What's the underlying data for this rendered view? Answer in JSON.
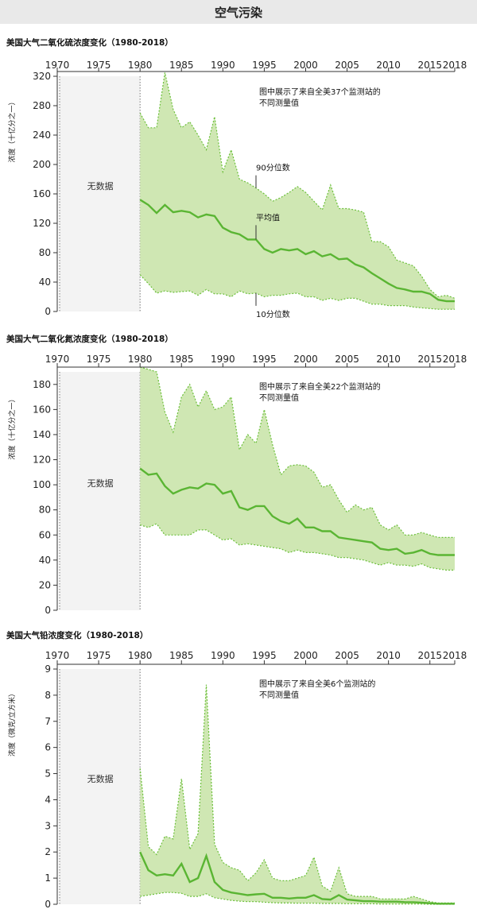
{
  "header": {
    "title": "空气污染"
  },
  "colors": {
    "band": "#cfe7b3",
    "band_edge": "#6bbf3a",
    "mean": "#5ab533",
    "nodata_bg": "#f3f3f3",
    "header_bg": "#e9e9e9"
  },
  "chart_data": [
    {
      "type": "area",
      "title": "美国大气二氧化硫浓度变化（1980-2018）",
      "ylabel": "浓度（十亿分之一）",
      "note": [
        "图中展示了来自全美37个监测站的",
        "不同测量值"
      ],
      "no_data_label": "无数据",
      "xlim": [
        1970,
        2018
      ],
      "xticks": [
        "1970",
        "1975",
        "1980",
        "1985",
        "1990",
        "1995",
        "2000",
        "2005",
        "2010",
        "2015",
        "2018"
      ],
      "ylim": [
        0,
        320
      ],
      "yticks": [
        0,
        40,
        80,
        120,
        160,
        200,
        240,
        280,
        320
      ],
      "annotations": [
        "90分位数",
        "平均值",
        "10分位数"
      ],
      "x": [
        1980,
        1981,
        1982,
        1983,
        1984,
        1985,
        1986,
        1987,
        1988,
        1989,
        1990,
        1991,
        1992,
        1993,
        1994,
        1995,
        1996,
        1997,
        1998,
        1999,
        2000,
        2001,
        2002,
        2003,
        2004,
        2005,
        2006,
        2007,
        2008,
        2009,
        2010,
        2011,
        2012,
        2013,
        2014,
        2015,
        2016,
        2017,
        2018
      ],
      "series": [
        {
          "name": "90分位数",
          "values": [
            270,
            250,
            250,
            325,
            275,
            250,
            258,
            240,
            220,
            265,
            190,
            220,
            180,
            175,
            168,
            160,
            150,
            155,
            162,
            170,
            162,
            150,
            138,
            172,
            140,
            140,
            138,
            135,
            95,
            95,
            88,
            70,
            66,
            62,
            48,
            30,
            20,
            22,
            18
          ]
        },
        {
          "name": "平均值",
          "values": [
            152,
            145,
            134,
            145,
            135,
            137,
            135,
            128,
            132,
            130,
            114,
            108,
            105,
            98,
            98,
            85,
            80,
            85,
            83,
            85,
            78,
            82,
            75,
            78,
            71,
            72,
            64,
            60,
            52,
            45,
            38,
            32,
            30,
            27,
            27,
            24,
            16,
            14,
            14
          ]
        },
        {
          "name": "10分位数",
          "values": [
            50,
            38,
            25,
            28,
            26,
            27,
            28,
            22,
            30,
            24,
            24,
            20,
            28,
            24,
            25,
            20,
            22,
            22,
            24,
            25,
            20,
            20,
            15,
            18,
            15,
            18,
            18,
            14,
            10,
            10,
            8,
            8,
            8,
            6,
            5,
            4,
            3,
            3,
            3
          ]
        }
      ]
    },
    {
      "type": "area",
      "title": "美国大气二氧化氮浓度变化（1980-2018）",
      "ylabel": "浓度（十亿分之一）",
      "note": [
        "图中展示了来自全美22个监测站的",
        "不同测量值"
      ],
      "no_data_label": "无数据",
      "xlim": [
        1970,
        2018
      ],
      "xticks": [
        "1970",
        "1975",
        "1980",
        "1985",
        "1990",
        "1995",
        "2000",
        "2005",
        "2010",
        "2015",
        "2018"
      ],
      "ylim": [
        0,
        190
      ],
      "yticks": [
        0,
        20,
        40,
        60,
        80,
        100,
        120,
        140,
        160,
        180
      ],
      "x": [
        1980,
        1981,
        1982,
        1983,
        1984,
        1985,
        1986,
        1987,
        1988,
        1989,
        1990,
        1991,
        1992,
        1993,
        1994,
        1995,
        1996,
        1997,
        1998,
        1999,
        2000,
        2001,
        2002,
        2003,
        2004,
        2005,
        2006,
        2007,
        2008,
        2009,
        2010,
        2011,
        2012,
        2013,
        2014,
        2015,
        2016,
        2017,
        2018
      ],
      "series": [
        {
          "name": "90分位数",
          "values": [
            195,
            192,
            190,
            158,
            142,
            170,
            180,
            162,
            175,
            160,
            162,
            170,
            128,
            140,
            133,
            160,
            132,
            108,
            115,
            116,
            115,
            110,
            98,
            100,
            88,
            78,
            84,
            80,
            82,
            68,
            64,
            68,
            60,
            60,
            62,
            60,
            58,
            58,
            58
          ]
        },
        {
          "name": "平均值",
          "values": [
            113,
            108,
            109,
            99,
            93,
            96,
            98,
            97,
            101,
            100,
            93,
            95,
            82,
            80,
            83,
            83,
            75,
            71,
            69,
            73,
            66,
            66,
            63,
            63,
            58,
            57,
            56,
            55,
            54,
            49,
            48,
            49,
            45,
            46,
            48,
            45,
            44,
            44,
            44
          ]
        },
        {
          "name": "10分位数",
          "values": [
            68,
            66,
            69,
            60,
            60,
            60,
            60,
            64,
            64,
            60,
            56,
            57,
            52,
            53,
            52,
            51,
            50,
            49,
            46,
            48,
            46,
            46,
            45,
            44,
            42,
            42,
            41,
            40,
            38,
            36,
            38,
            36,
            36,
            35,
            37,
            34,
            33,
            32,
            32
          ]
        }
      ]
    },
    {
      "type": "area",
      "title": "美国大气铅浓度变化（1980-2018）",
      "ylabel": "浓度（微克/立方米）",
      "note": [
        "图中展示了来自全美6个监测站的",
        "不同测量值"
      ],
      "no_data_label": "无数据",
      "xlim": [
        1970,
        2018
      ],
      "xticks": [
        "1970",
        "1975",
        "1980",
        "1985",
        "1990",
        "1995",
        "2000",
        "2005",
        "2010",
        "2015",
        "2018"
      ],
      "ylim": [
        0,
        9
      ],
      "yticks": [
        0,
        1,
        2,
        3,
        4,
        5,
        6,
        7,
        8,
        9
      ],
      "x": [
        1980,
        1981,
        1982,
        1983,
        1984,
        1985,
        1986,
        1987,
        1988,
        1989,
        1990,
        1991,
        1992,
        1993,
        1994,
        1995,
        1996,
        1997,
        1998,
        1999,
        2000,
        2001,
        2002,
        2003,
        2004,
        2005,
        2006,
        2007,
        2008,
        2009,
        2010,
        2011,
        2012,
        2013,
        2014,
        2015,
        2016,
        2017,
        2018
      ],
      "series": [
        {
          "name": "90分位数",
          "values": [
            5.2,
            2.2,
            1.9,
            2.6,
            2.5,
            4.8,
            2.1,
            2.7,
            8.4,
            2.3,
            1.6,
            1.4,
            1.3,
            0.9,
            1.2,
            1.7,
            1.0,
            0.9,
            0.9,
            1.0,
            1.1,
            1.8,
            0.7,
            0.5,
            1.4,
            0.4,
            0.3,
            0.3,
            0.3,
            0.2,
            0.2,
            0.2,
            0.2,
            0.3,
            0.2,
            0.1,
            0.05,
            0.05,
            0.05
          ]
        },
        {
          "name": "平均值",
          "values": [
            2.0,
            1.3,
            1.1,
            1.15,
            1.1,
            1.55,
            0.85,
            1.0,
            1.85,
            0.85,
            0.55,
            0.45,
            0.4,
            0.35,
            0.38,
            0.4,
            0.25,
            0.25,
            0.22,
            0.25,
            0.25,
            0.35,
            0.2,
            0.18,
            0.35,
            0.18,
            0.15,
            0.12,
            0.12,
            0.1,
            0.1,
            0.1,
            0.08,
            0.08,
            0.06,
            0.04,
            0.02,
            0.02,
            0.02
          ]
        },
        {
          "name": "10分位数",
          "values": [
            0.3,
            0.35,
            0.4,
            0.45,
            0.45,
            0.42,
            0.3,
            0.3,
            0.4,
            0.25,
            0.2,
            0.15,
            0.12,
            0.1,
            0.1,
            0.08,
            0.06,
            0.05,
            0.05,
            0.04,
            0.04,
            0.04,
            0.03,
            0.03,
            0.03,
            0.02,
            0.02,
            0.02,
            0.02,
            0.01,
            0.01,
            0.01,
            0.01,
            0.01,
            0.01,
            0.0,
            0.0,
            0.0,
            0.0
          ]
        }
      ]
    }
  ]
}
